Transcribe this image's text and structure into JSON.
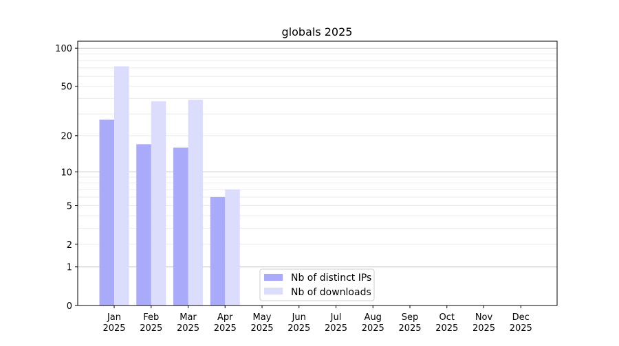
{
  "chart_data": {
    "type": "bar",
    "title": "globals 2025",
    "xlabel": "",
    "ylabel": "",
    "yscale": "log(1+y)",
    "ylim": [
      0,
      113
    ],
    "yticks": [
      0,
      1,
      2,
      5,
      10,
      20,
      50,
      100
    ],
    "grid": true,
    "legend_position": "bottom-center",
    "categories": [
      "Jan\n2025",
      "Feb\n2025",
      "Mar\n2025",
      "Apr\n2025",
      "May\n2025",
      "Jun\n2025",
      "Jul\n2025",
      "Aug\n2025",
      "Sep\n2025",
      "Oct\n2025",
      "Nov\n2025",
      "Dec\n2025"
    ],
    "series": [
      {
        "name": "Nb of distinct IPs",
        "color": "#aaaafa",
        "values": [
          27,
          17,
          16,
          6,
          null,
          null,
          null,
          null,
          null,
          null,
          null,
          null
        ]
      },
      {
        "name": "Nb of downloads",
        "color": "#dcdcfc",
        "values": [
          72,
          38,
          39,
          7,
          null,
          null,
          null,
          null,
          null,
          null,
          null,
          null
        ]
      }
    ]
  }
}
